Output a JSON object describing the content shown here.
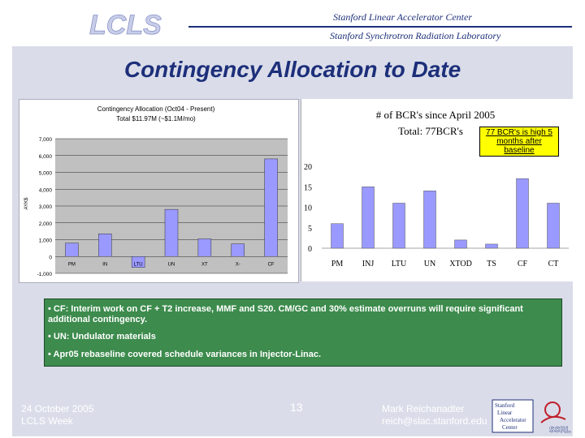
{
  "header": {
    "logo_text": "LCLS",
    "org_line1": "Stanford Linear Accelerator Center",
    "org_line2": "Stanford Synchrotron Radiation Laboratory"
  },
  "slide": {
    "title": "Contingency Allocation to Date"
  },
  "colors": {
    "title": "#1d2f7a",
    "slide_bg": "#dadde9",
    "notes_bg": "#3d8b4d",
    "bar_fill": "#9999ff",
    "annotation_bg": "#ffff00"
  },
  "chart_data": [
    {
      "type": "bar",
      "title": "Contingency Allocation (Oct04 - Present)",
      "subtitle": "Total $11.97M (~$1.1M/mo)",
      "ylabel": "AYK$",
      "xlabel": "",
      "categories": [
        "PM",
        "IN",
        "LTU",
        "UN",
        "XT",
        "X-",
        "CF"
      ],
      "values": [
        800,
        1350,
        -650,
        2800,
        1050,
        750,
        5800
      ],
      "ylim": [
        -1000,
        7000
      ],
      "yticks": [
        "-1,000",
        "0",
        "1,000",
        "2,000",
        "3,000",
        "4,000",
        "5,000",
        "6,000",
        "7,000"
      ],
      "grid": true,
      "legend": "none"
    },
    {
      "type": "bar",
      "title": "# of BCR's since April 2005",
      "subtitle": "Total: 77BCR's",
      "xlabel": "",
      "ylabel": "",
      "categories": [
        "PM",
        "INJ",
        "LTU",
        "UN",
        "XTOD",
        "TS",
        "CF",
        "CT"
      ],
      "values": [
        6,
        15,
        11,
        14,
        2,
        1,
        17,
        11
      ],
      "ylim": [
        0,
        21
      ],
      "yticks": [
        "0",
        "5",
        "10",
        "15",
        "20"
      ],
      "grid": false,
      "legend": "none",
      "annotation": "77 BCR's is high 5 months after baseline"
    }
  ],
  "notes": [
    "• CF:  Interim work on CF + T2 increase, MMF and S20.  CM/GC and 30% estimate overruns will require significant additional contingency.",
    "• UN:  Undulator materials",
    "• Apr05 rebaseline covered schedule variances in Injector-Linac."
  ],
  "footer": {
    "date": "24 October 2005",
    "event": "LCLS Week",
    "page": "13",
    "author": "Mark Reichanadter",
    "email": "reich@slac.stanford.edu",
    "logo_lines": [
      "Stanford",
      "Linear",
      "Accelerator",
      "Center"
    ],
    "ssrl": "SSRL"
  }
}
